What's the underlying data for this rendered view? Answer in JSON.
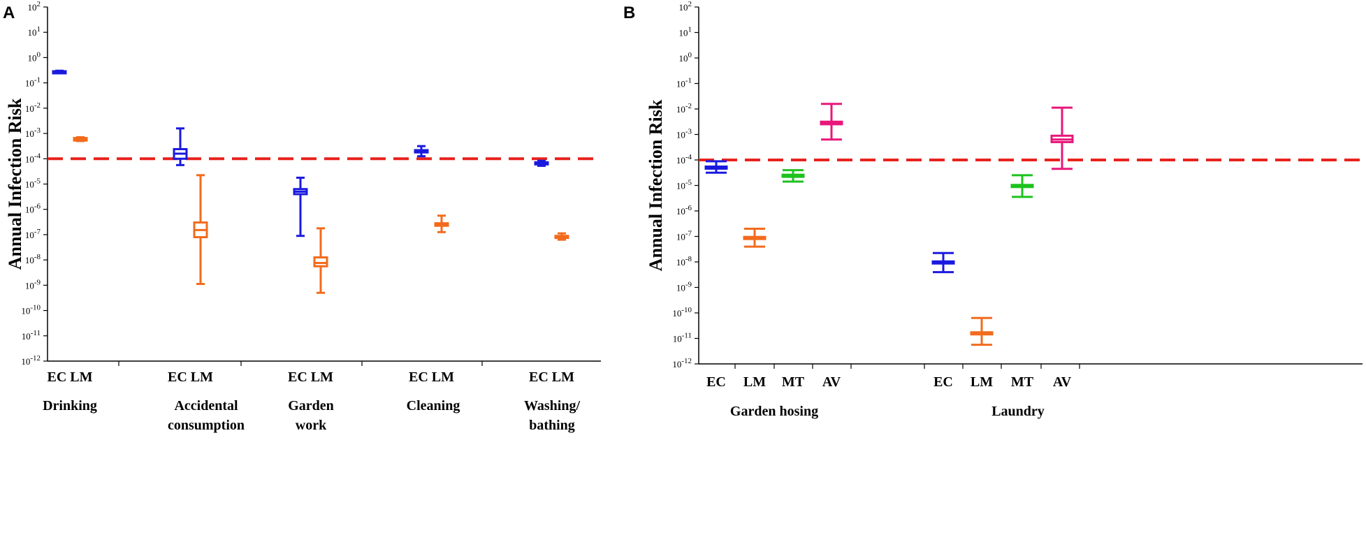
{
  "chart_data": [
    {
      "type": "box",
      "panel_label": "A",
      "ylabel": "Annual Infection Risk",
      "yscale": "log",
      "ylim_exp": [
        -12,
        2
      ],
      "tick_base": "10",
      "tick_exponents": [
        "2",
        "1",
        "0",
        "-1",
        "-2",
        "-3",
        "-4",
        "-5",
        "-6",
        "-7",
        "-8",
        "-9",
        "-10",
        "-11",
        "-12"
      ],
      "threshold": {
        "value_exp": -4,
        "color": "#e8221d"
      },
      "colors": {
        "EC": "#1a1adf",
        "LM": "#f26b1d"
      },
      "groups": [
        {
          "name_lines": [
            "Drinking"
          ],
          "series_labels": "EC  LM",
          "boxes": [
            {
              "series": "EC",
              "min": -0.58,
              "q1": -0.56,
              "median": -0.55,
              "q3": -0.54,
              "max": -0.52
            },
            {
              "series": "LM",
              "min": -3.3,
              "q1": -3.28,
              "median": -3.23,
              "q3": -3.18,
              "max": -3.15
            }
          ]
        },
        {
          "name_lines": [
            "Accidental",
            "consumption"
          ],
          "series_labels": "EC LM",
          "boxes": [
            {
              "series": "EC",
              "min": -4.25,
              "q1": -4.0,
              "median": -3.8,
              "q3": -3.62,
              "max": -2.8
            },
            {
              "series": "LM",
              "min": -8.95,
              "q1": -7.1,
              "median": -6.82,
              "q3": -6.52,
              "max": -4.65
            }
          ]
        },
        {
          "name_lines": [
            "Garden",
            "work"
          ],
          "series_labels": "EC LM",
          "boxes": [
            {
              "series": "EC",
              "min": -7.05,
              "q1": -5.4,
              "median": -5.3,
              "q3": -5.2,
              "max": -4.75
            },
            {
              "series": "LM",
              "min": -9.3,
              "q1": -8.25,
              "median": -8.12,
              "q3": -7.9,
              "max": -6.75
            }
          ]
        },
        {
          "name_lines": [
            "Cleaning"
          ],
          "series_labels": "EC LM",
          "boxes": [
            {
              "series": "EC",
              "min": -3.9,
              "q1": -3.75,
              "median": -3.72,
              "q3": -3.66,
              "max": -3.5
            },
            {
              "series": "LM",
              "min": -6.9,
              "q1": -6.65,
              "median": -6.6,
              "q3": -6.55,
              "max": -6.25
            }
          ]
        },
        {
          "name_lines": [
            "Washing/",
            "bathing"
          ],
          "series_labels": "EC LM",
          "boxes": [
            {
              "series": "EC",
              "min": -4.28,
              "q1": -4.22,
              "median": -4.18,
              "q3": -4.14,
              "max": -4.08
            },
            {
              "series": "LM",
              "min": -7.2,
              "q1": -7.13,
              "median": -7.1,
              "q3": -7.05,
              "max": -6.95
            }
          ]
        }
      ]
    },
    {
      "type": "box",
      "panel_label": "B",
      "ylabel": "Annual Infection Risk",
      "yscale": "log",
      "ylim_exp": [
        -12,
        2
      ],
      "tick_base": "10",
      "tick_exponents": [
        "2",
        "1",
        "0",
        "-1",
        "-2",
        "-3",
        "-4",
        "-5",
        "-6",
        "-7",
        "-8",
        "-9",
        "-10",
        "-11",
        "-12"
      ],
      "threshold": {
        "value_exp": -4,
        "color": "#e8221d"
      },
      "colors": {
        "EC": "#1a1adf",
        "LM": "#f26b1d",
        "MT": "#1ec21e",
        "AV": "#e8177a"
      },
      "groups": [
        {
          "name": "Garden hosing",
          "boxes": [
            {
              "series": "EC",
              "label": "EC",
              "min": -4.5,
              "q1": -4.3,
              "median": -4.28,
              "q3": -4.26,
              "max": -4.05
            },
            {
              "series": "LM",
              "label": "LM",
              "min": -7.4,
              "q1": -7.08,
              "median": -7.05,
              "q3": -7.02,
              "max": -6.7
            },
            {
              "series": "MT",
              "label": "MT",
              "min": -4.85,
              "q1": -4.62,
              "median": -4.6,
              "q3": -4.58,
              "max": -4.4
            },
            {
              "series": "AV",
              "label": "AV",
              "min": -3.2,
              "q1": -2.6,
              "median": -2.55,
              "q3": -2.5,
              "max": -1.8
            }
          ]
        },
        {
          "name": "Laundry",
          "boxes": [
            {
              "series": "EC",
              "label": "EC",
              "min": -8.4,
              "q1": -8.02,
              "median": -8.0,
              "q3": -7.98,
              "max": -7.65
            },
            {
              "series": "LM",
              "label": "LM",
              "min": -11.25,
              "q1": -10.8,
              "median": -10.78,
              "q3": -10.76,
              "max": -10.2
            },
            {
              "series": "MT",
              "label": "MT",
              "min": -5.45,
              "q1": -5.02,
              "median": -5.0,
              "q3": -4.98,
              "max": -4.6
            },
            {
              "series": "AV",
              "label": "AV",
              "min": -4.35,
              "q1": -3.3,
              "median": -3.2,
              "q3": -3.05,
              "max": -1.95
            }
          ]
        }
      ]
    }
  ]
}
